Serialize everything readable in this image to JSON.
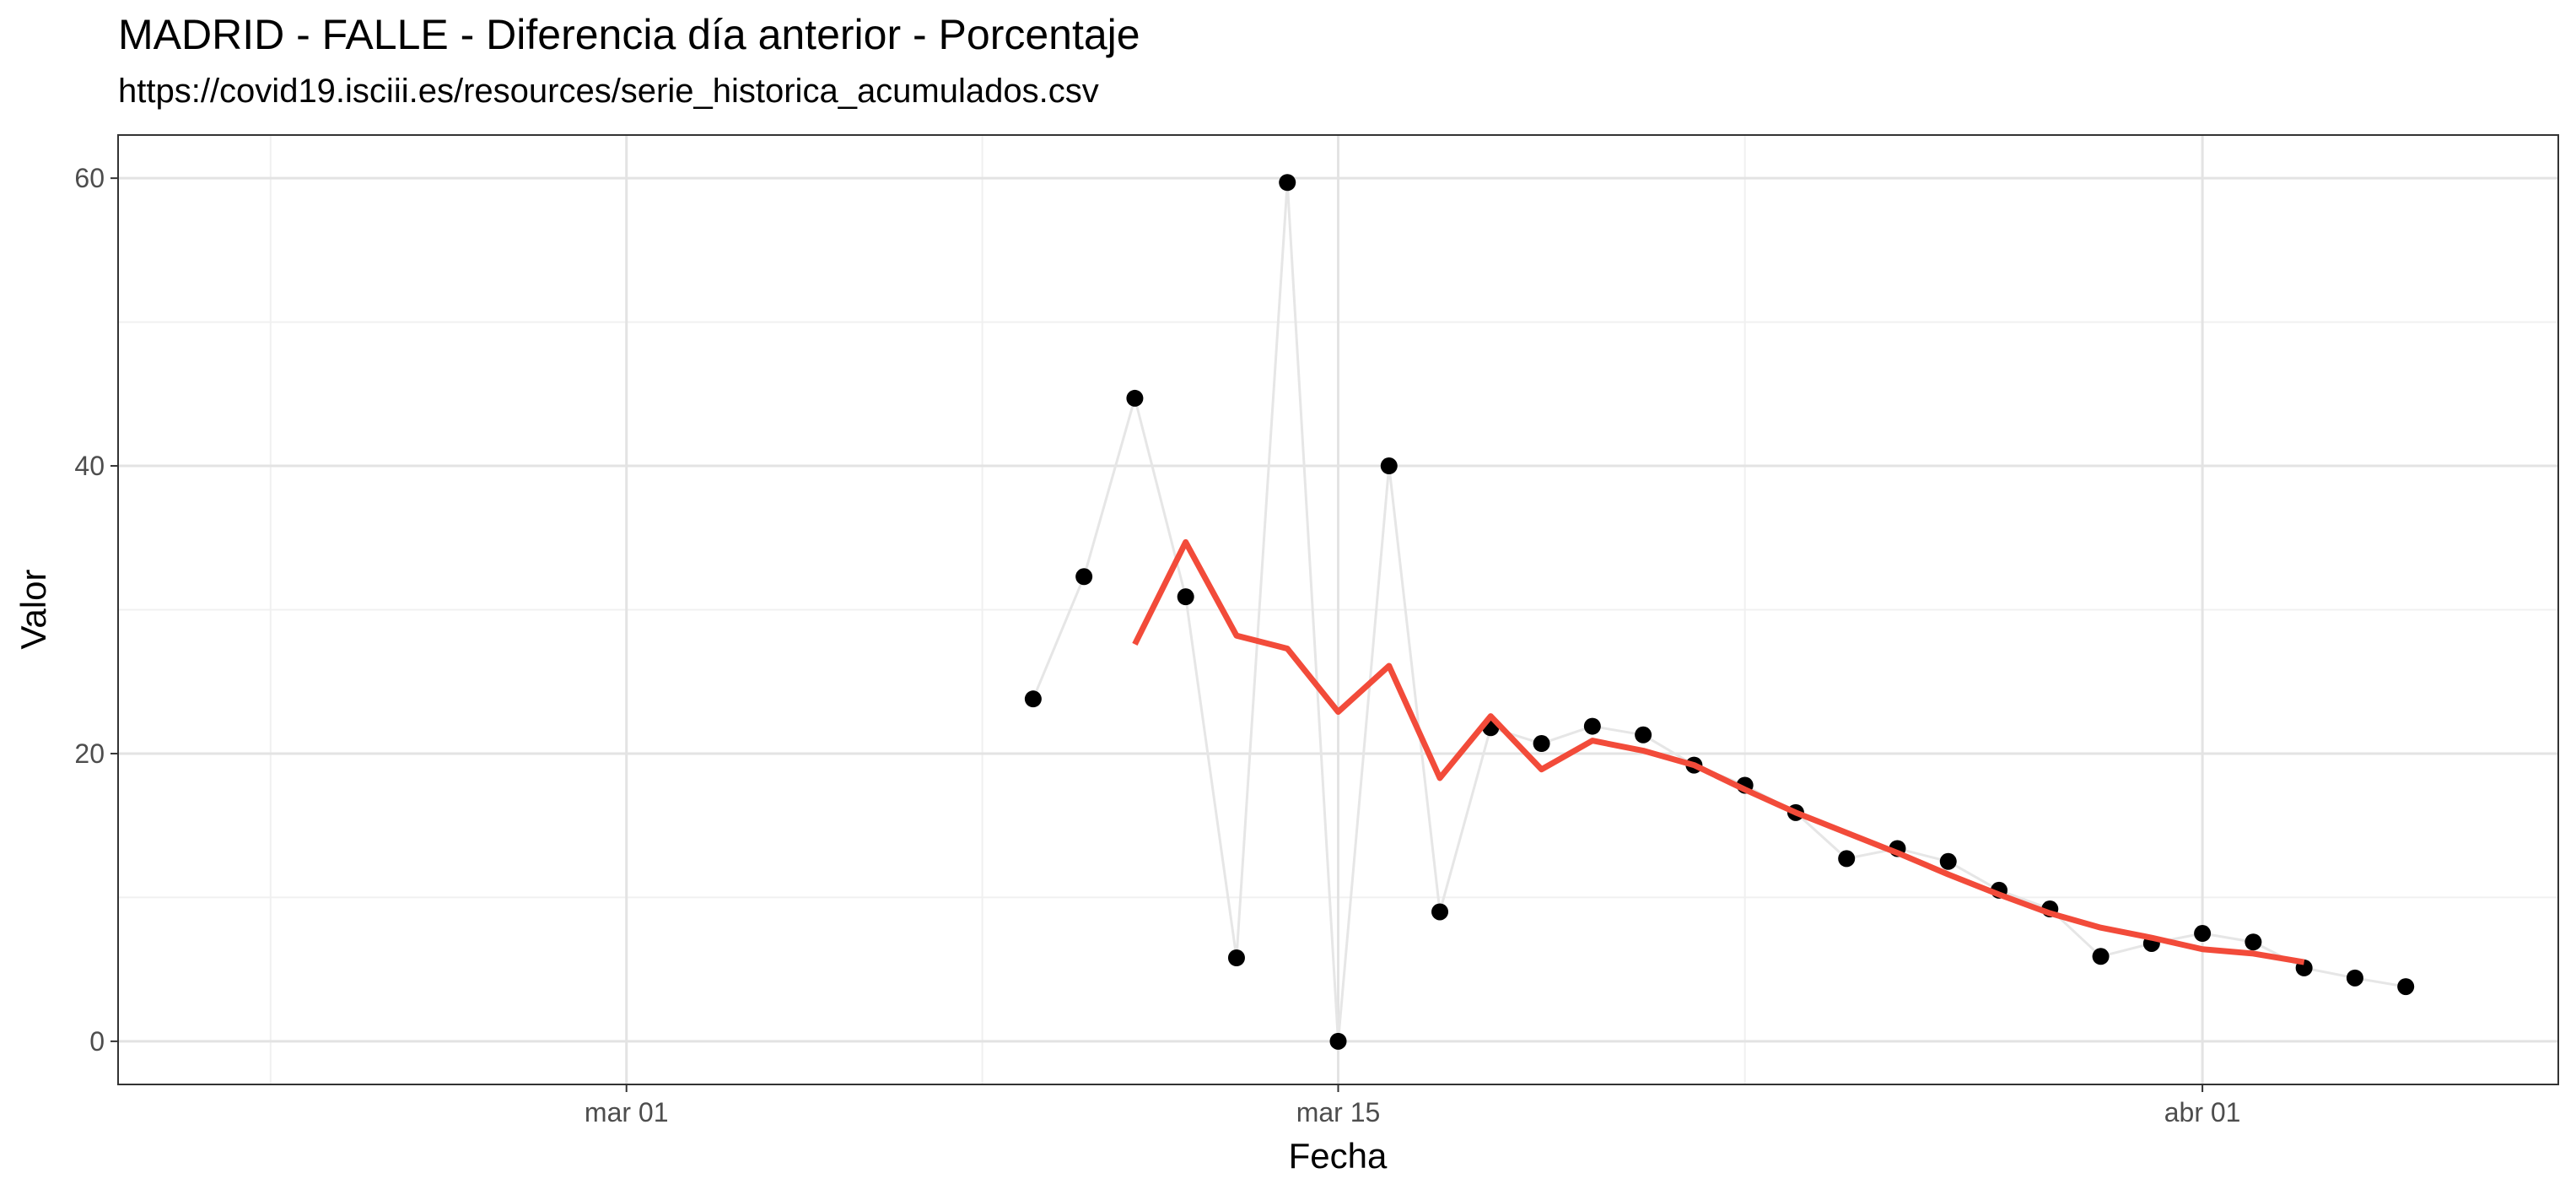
{
  "chart_data": {
    "type": "line",
    "title": "MADRID - FALLE - Diferencia día anterior - Porcentaje",
    "subtitle": "https://covid19.isciii.es/resources/serie_historica_acumulados.csv",
    "xlabel": "Fecha",
    "ylabel": "Valor",
    "x_range": [
      "2020-02-20",
      "2020-04-08"
    ],
    "ylim": [
      -3,
      63
    ],
    "x_ticks": [
      {
        "date": "2020-03-01",
        "label": "mar 01"
      },
      {
        "date": "2020-03-15",
        "label": "mar 15"
      },
      {
        "date": "2020-04-01",
        "label": "abr 01"
      }
    ],
    "x_minor_ticks": [
      "2020-02-23",
      "2020-03-08",
      "2020-03-23"
    ],
    "y_ticks": [
      0,
      20,
      40,
      60
    ],
    "y_minor_ticks": [
      10,
      30,
      50
    ],
    "grid": true,
    "series": [
      {
        "style": "points-with-line",
        "color": "#000000",
        "line_color": "#e6e6e6",
        "points": [
          {
            "x": "2020-03-09",
            "y": 23.8
          },
          {
            "x": "2020-03-10",
            "y": 32.3
          },
          {
            "x": "2020-03-11",
            "y": 44.7
          },
          {
            "x": "2020-03-12",
            "y": 30.9
          },
          {
            "x": "2020-03-13",
            "y": 5.8
          },
          {
            "x": "2020-03-14",
            "y": 59.7
          },
          {
            "x": "2020-03-15",
            "y": 0.0
          },
          {
            "x": "2020-03-16",
            "y": 40.0
          },
          {
            "x": "2020-03-17",
            "y": 9.0
          },
          {
            "x": "2020-03-18",
            "y": 21.8
          },
          {
            "x": "2020-03-19",
            "y": 20.7
          },
          {
            "x": "2020-03-20",
            "y": 21.9
          },
          {
            "x": "2020-03-21",
            "y": 21.3
          },
          {
            "x": "2020-03-22",
            "y": 19.2
          },
          {
            "x": "2020-03-23",
            "y": 17.8
          },
          {
            "x": "2020-03-24",
            "y": 15.9
          },
          {
            "x": "2020-03-25",
            "y": 12.7
          },
          {
            "x": "2020-03-26",
            "y": 13.4
          },
          {
            "x": "2020-03-27",
            "y": 12.5
          },
          {
            "x": "2020-03-28",
            "y": 10.5
          },
          {
            "x": "2020-03-29",
            "y": 9.2
          },
          {
            "x": "2020-03-30",
            "y": 5.9
          },
          {
            "x": "2020-03-31",
            "y": 6.8
          },
          {
            "x": "2020-04-01",
            "y": 7.5
          },
          {
            "x": "2020-04-02",
            "y": 6.9
          },
          {
            "x": "2020-04-03",
            "y": 5.1
          },
          {
            "x": "2020-04-04",
            "y": 4.4
          },
          {
            "x": "2020-04-05",
            "y": 3.8
          }
        ]
      },
      {
        "style": "line",
        "color": "#f24b3a",
        "points": [
          {
            "x": "2020-03-11",
            "y": 27.6
          },
          {
            "x": "2020-03-12",
            "y": 34.7
          },
          {
            "x": "2020-03-13",
            "y": 28.2
          },
          {
            "x": "2020-03-14",
            "y": 27.3
          },
          {
            "x": "2020-03-15",
            "y": 22.9
          },
          {
            "x": "2020-03-16",
            "y": 26.1
          },
          {
            "x": "2020-03-17",
            "y": 18.3
          },
          {
            "x": "2020-03-18",
            "y": 22.6
          },
          {
            "x": "2020-03-19",
            "y": 18.9
          },
          {
            "x": "2020-03-20",
            "y": 20.9
          },
          {
            "x": "2020-03-21",
            "y": 20.2
          },
          {
            "x": "2020-03-22",
            "y": 19.2
          },
          {
            "x": "2020-03-23",
            "y": 17.5
          },
          {
            "x": "2020-03-24",
            "y": 15.9
          },
          {
            "x": "2020-03-25",
            "y": 14.5
          },
          {
            "x": "2020-03-26",
            "y": 13.1
          },
          {
            "x": "2020-03-27",
            "y": 11.6
          },
          {
            "x": "2020-03-28",
            "y": 10.2
          },
          {
            "x": "2020-03-29",
            "y": 8.9
          },
          {
            "x": "2020-03-30",
            "y": 7.9
          },
          {
            "x": "2020-03-31",
            "y": 7.2
          },
          {
            "x": "2020-04-01",
            "y": 6.4
          },
          {
            "x": "2020-04-02",
            "y": 6.1
          },
          {
            "x": "2020-04-03",
            "y": 5.5
          }
        ]
      }
    ]
  }
}
